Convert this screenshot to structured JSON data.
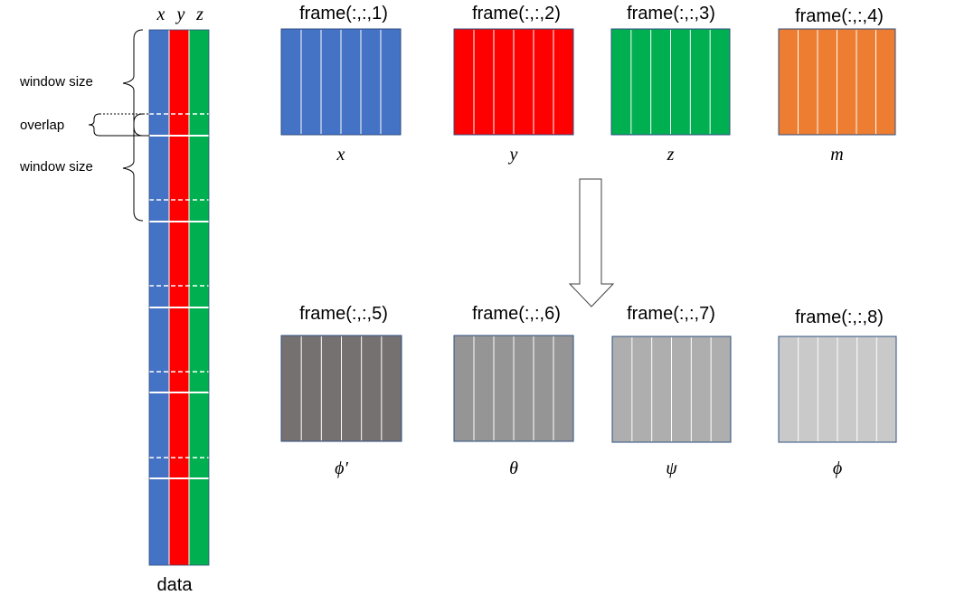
{
  "colors": {
    "x": "#4472C4",
    "y": "#FF0000",
    "z": "#00B050",
    "m": "#ED7D31",
    "phi_prime": "#767171",
    "theta": "#959595",
    "psi": "#AEAEAE",
    "phi": "#C9C9C9",
    "frame_border": "#2F4F7F",
    "separator": "#ffffff",
    "arrow_fill": "#ffffff",
    "arrow_stroke": "#404040"
  },
  "data_column": {
    "header_labels": [
      "x",
      "y",
      "z"
    ],
    "caption": "data"
  },
  "annotations": {
    "window_size_1": "window size",
    "overlap": "overlap",
    "window_size_2": "window size"
  },
  "frames": [
    {
      "title": "frame(:,:,1)",
      "symbol": "x",
      "color_key": "x",
      "stripes": 6
    },
    {
      "title": "frame(:,:,2)",
      "symbol": "y",
      "color_key": "y",
      "stripes": 6
    },
    {
      "title": "frame(:,:,3)",
      "symbol": "z",
      "color_key": "z",
      "stripes": 6
    },
    {
      "title": "frame(:,:,4)",
      "symbol": "m",
      "color_key": "m",
      "stripes": 6
    },
    {
      "title": "frame(:,:,5)",
      "symbol": "ϕ′",
      "color_key": "phi_prime",
      "stripes": 6
    },
    {
      "title": "frame(:,:,6)",
      "symbol": "θ",
      "color_key": "theta",
      "stripes": 6
    },
    {
      "title": "frame(:,:,7)",
      "symbol": "ψ",
      "color_key": "psi",
      "stripes": 6
    },
    {
      "title": "frame(:,:,8)",
      "symbol": "ϕ",
      "color_key": "phi",
      "stripes": 6
    }
  ]
}
